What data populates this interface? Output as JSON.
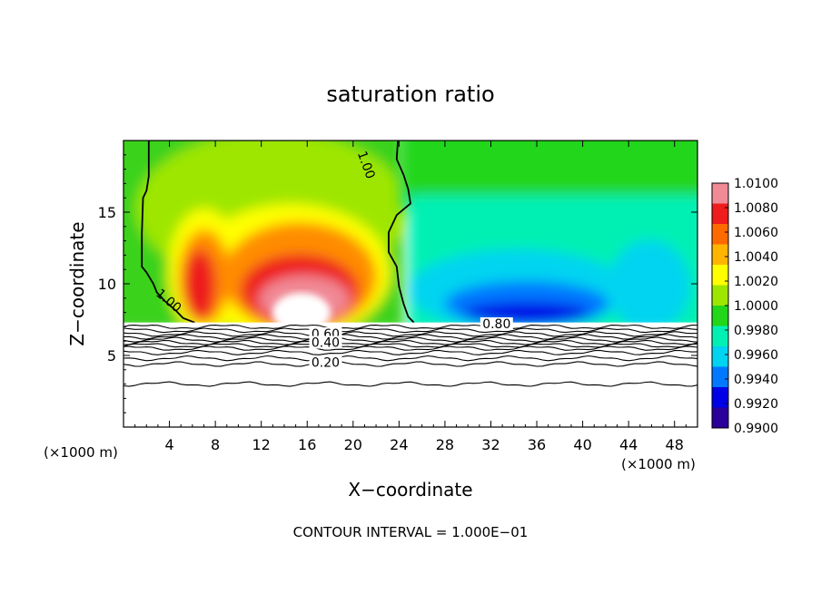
{
  "chart_data": {
    "type": "heatmap",
    "title": "saturation ratio",
    "xlabel": "X−coordinate",
    "ylabel": "Z−coordinate",
    "x_unit_left": "(×1000 m)",
    "x_unit_right": "(×1000 m)",
    "footer": "CONTOUR INTERVAL = 1.000E−01",
    "xlim": [
      0,
      50
    ],
    "ylim": [
      0,
      20
    ],
    "x_ticks": [
      4,
      8,
      12,
      16,
      20,
      24,
      28,
      32,
      36,
      40,
      44,
      48
    ],
    "x_tick_labels": [
      "4",
      "8",
      "12",
      "16",
      "20",
      "24",
      "28",
      "32",
      "36",
      "40",
      "44",
      "48"
    ],
    "y_ticks": [
      5,
      10,
      15
    ],
    "y_tick_labels": [
      "5",
      "10",
      "15"
    ],
    "colorbar": {
      "min": 0.99,
      "max": 1.01,
      "labels": [
        "1.0100",
        "1.0080",
        "1.0060",
        "1.0040",
        "1.0020",
        "1.0000",
        "0.9980",
        "0.9960",
        "0.9940",
        "0.9920",
        "0.9900"
      ],
      "colors": [
        "#f08a96",
        "#ee1c1c",
        "#ff6a00",
        "#ffb400",
        "#ffff00",
        "#9ee600",
        "#22d61a",
        "#00f0b4",
        "#00d4f0",
        "#0078ff",
        "#0000e6",
        "#2a009a"
      ]
    },
    "contour_labels": [
      {
        "text": "1.00",
        "x": 20.8,
        "z": 18.2
      },
      {
        "text": "1.00",
        "x": 3.7,
        "z": 8.6
      },
      {
        "text": "0.80",
        "x": 32.5,
        "z": 6.9
      },
      {
        "text": "0.60",
        "x": 17.6,
        "z": 6.2
      },
      {
        "text": "0.40",
        "x": 17.6,
        "z": 5.6
      },
      {
        "text": "0.20",
        "x": 17.6,
        "z": 4.2
      }
    ],
    "contour_levels_below": [
      7.0,
      6.75,
      6.5,
      6.3,
      6.1,
      5.9,
      5.7,
      5.5,
      5.2,
      4.8,
      4.4,
      3.0
    ],
    "contour_1_00_line": [
      [
        2.2,
        20.0
      ],
      [
        2.2,
        17.5
      ],
      [
        2.0,
        16.5
      ],
      [
        1.7,
        16.0
      ],
      [
        1.6,
        13.5
      ],
      [
        1.6,
        11.2
      ],
      [
        2.0,
        10.8
      ],
      [
        2.6,
        10.0
      ],
      [
        2.9,
        9.4
      ],
      [
        3.6,
        8.8
      ],
      [
        4.6,
        8.1
      ],
      [
        5.2,
        7.6
      ],
      [
        6.2,
        7.3
      ]
    ],
    "contour_1_00_line_right": [
      [
        23.9,
        20.0
      ],
      [
        23.8,
        18.7
      ],
      [
        24.4,
        17.6
      ],
      [
        24.8,
        16.6
      ],
      [
        25.0,
        15.6
      ],
      [
        24.4,
        15.2
      ],
      [
        23.8,
        14.8
      ],
      [
        23.1,
        13.6
      ],
      [
        23.1,
        12.2
      ],
      [
        23.8,
        11.2
      ],
      [
        24.0,
        9.8
      ],
      [
        24.4,
        8.6
      ],
      [
        24.8,
        7.7
      ],
      [
        25.3,
        7.3
      ]
    ],
    "surface_height": 7.3
  }
}
